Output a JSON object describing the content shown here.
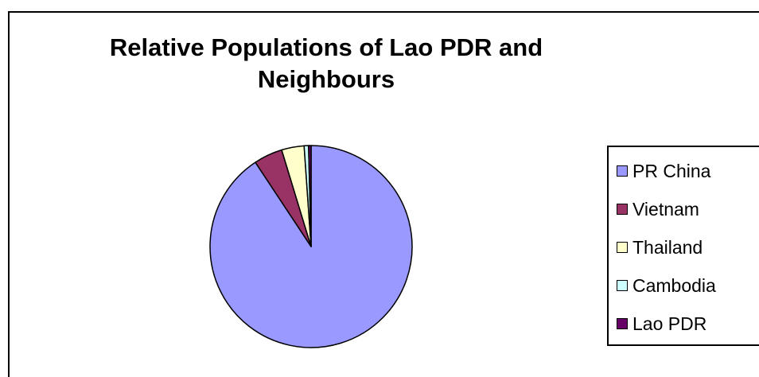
{
  "chart_data": {
    "type": "pie",
    "title": "Relative Populations of Lao PDR and Neighbours",
    "slices": [
      {
        "label": "PR China",
        "value": 90.7,
        "color": "#9999ff"
      },
      {
        "label": "Vietnam",
        "value": 4.6,
        "color": "#993366"
      },
      {
        "label": "Thailand",
        "value": 3.6,
        "color": "#ffffcc"
      },
      {
        "label": "Cambodia",
        "value": 0.7,
        "color": "#ccffff"
      },
      {
        "label": "Lao PDR",
        "value": 0.4,
        "color": "#660066"
      }
    ],
    "legend_position": "right"
  }
}
